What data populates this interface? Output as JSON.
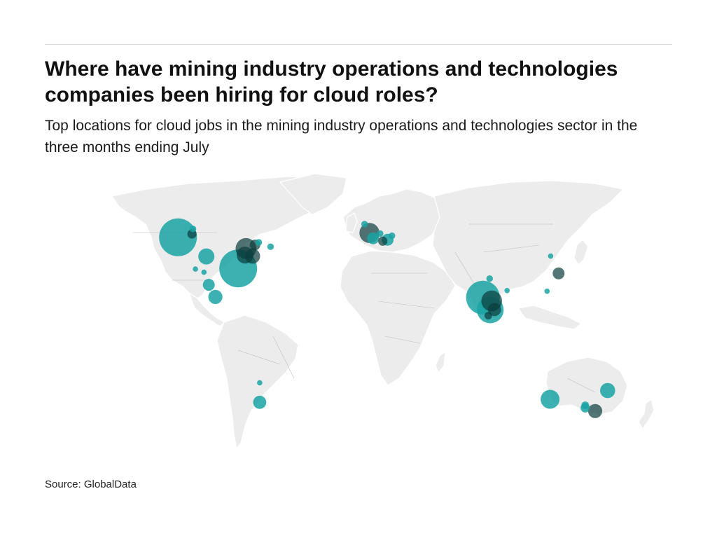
{
  "header": {
    "title": "Where have mining industry operations and technologies companies been hiring for cloud roles?",
    "subtitle": "Top locations for cloud jobs in the mining industry operations and technologies sector in the three months ending July"
  },
  "footer": {
    "source": "Source: GlobalData"
  },
  "colors": {
    "bubble": "#1aa3a3",
    "bubble_dark": "#0b3c3c",
    "land": "#ececec"
  },
  "chart_data": {
    "type": "bubble-map",
    "title": "Where have mining industry operations and technologies companies been hiring for cloud roles?",
    "subtitle": "Top locations for cloud jobs in the mining industry operations and technologies sector in the three months ending July",
    "points": [
      {
        "lon": -123.1,
        "lat": 49.3,
        "size": 100,
        "shade": "teal"
      },
      {
        "lon": -114.1,
        "lat": 51.0,
        "size": 6,
        "shade": "dark"
      },
      {
        "lon": -113.5,
        "lat": 53.5,
        "size": 3,
        "shade": "teal"
      },
      {
        "lon": -79.4,
        "lat": 43.7,
        "size": 30,
        "shade": "dark"
      },
      {
        "lon": -80.0,
        "lat": 40.4,
        "size": 20,
        "shade": "dark"
      },
      {
        "lon": -75.2,
        "lat": 39.9,
        "size": 16,
        "shade": "dark"
      },
      {
        "lon": -73.6,
        "lat": 45.5,
        "size": 8,
        "shade": "dark"
      },
      {
        "lon": -71.2,
        "lat": 46.8,
        "size": 3,
        "shade": "teal"
      },
      {
        "lon": -63.6,
        "lat": 44.6,
        "size": 3,
        "shade": "teal"
      },
      {
        "lon": -84.4,
        "lat": 33.7,
        "size": 100,
        "shade": "teal"
      },
      {
        "lon": -104.9,
        "lat": 39.7,
        "size": 18,
        "shade": "teal"
      },
      {
        "lon": -111.9,
        "lat": 33.4,
        "size": 2,
        "shade": "teal"
      },
      {
        "lon": -106.4,
        "lat": 31.8,
        "size": 2,
        "shade": "teal"
      },
      {
        "lon": -103.3,
        "lat": 25.5,
        "size": 10,
        "shade": "teal"
      },
      {
        "lon": -99.1,
        "lat": 19.4,
        "size": 14,
        "shade": "teal"
      },
      {
        "lon": -70.6,
        "lat": -23.6,
        "size": 2,
        "shade": "teal"
      },
      {
        "lon": -70.6,
        "lat": -33.4,
        "size": 12,
        "shade": "teal"
      },
      {
        "lon": -0.1,
        "lat": 51.5,
        "size": 28,
        "shade": "dark"
      },
      {
        "lon": -3.2,
        "lat": 55.9,
        "size": 3,
        "shade": "teal"
      },
      {
        "lon": 2.3,
        "lat": 48.8,
        "size": 10,
        "shade": "teal"
      },
      {
        "lon": 6.8,
        "lat": 51.2,
        "size": 3,
        "shade": "teal"
      },
      {
        "lon": 8.5,
        "lat": 47.4,
        "size": 6,
        "shade": "dark"
      },
      {
        "lon": 11.6,
        "lat": 48.1,
        "size": 10,
        "shade": "teal"
      },
      {
        "lon": 14.4,
        "lat": 50.1,
        "size": 3,
        "shade": "teal"
      },
      {
        "lon": 72.9,
        "lat": 19.1,
        "size": 80,
        "shade": "teal"
      },
      {
        "lon": 77.6,
        "lat": 12.9,
        "size": 50,
        "shade": "teal"
      },
      {
        "lon": 78.5,
        "lat": 17.4,
        "size": 30,
        "shade": "dark"
      },
      {
        "lon": 80.3,
        "lat": 13.1,
        "size": 12,
        "shade": "dark"
      },
      {
        "lon": 76.3,
        "lat": 10.0,
        "size": 4,
        "shade": "dark"
      },
      {
        "lon": 77.2,
        "lat": 28.6,
        "size": 3,
        "shade": "teal"
      },
      {
        "lon": 88.4,
        "lat": 22.6,
        "size": 2,
        "shade": "teal"
      },
      {
        "lon": 116.4,
        "lat": 39.9,
        "size": 2,
        "shade": "teal"
      },
      {
        "lon": 121.5,
        "lat": 31.2,
        "size": 10,
        "shade": "dark"
      },
      {
        "lon": 114.1,
        "lat": 22.3,
        "size": 2,
        "shade": "teal"
      },
      {
        "lon": 116.0,
        "lat": -31.9,
        "size": 25,
        "shade": "teal"
      },
      {
        "lon": 138.6,
        "lat": -34.9,
        "size": 4,
        "shade": "teal"
      },
      {
        "lon": 138.6,
        "lat": -36.2,
        "size": 6,
        "shade": "teal"
      },
      {
        "lon": 145.0,
        "lat": -37.8,
        "size": 14,
        "shade": "dark"
      },
      {
        "lon": 153.0,
        "lat": -27.5,
        "size": 16,
        "shade": "teal"
      }
    ]
  }
}
